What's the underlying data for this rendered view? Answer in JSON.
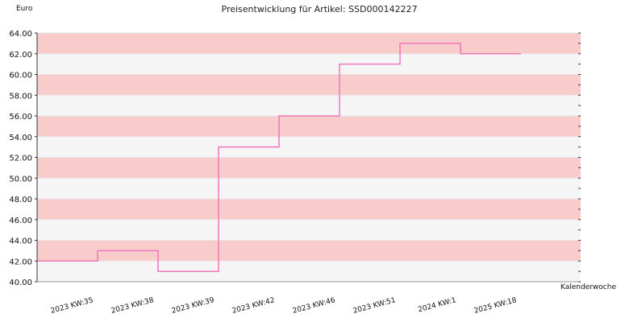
{
  "chart_data": {
    "type": "line",
    "step": true,
    "title": "Preisentwicklung für Artikel: SSD000142227",
    "ylabel": "Euro",
    "xlabel": "Kalenderwoche",
    "categories": [
      "2023 KW:35",
      "2023 KW:38",
      "2023 KW:39",
      "2023 KW:42",
      "2023 KW:46",
      "2023 KW:51",
      "2024 KW:1",
      "2025 KW:18"
    ],
    "values": [
      42.0,
      43.0,
      41.0,
      53.0,
      56.0,
      61.0,
      63.0,
      62.0
    ],
    "ylim": [
      40,
      64
    ],
    "yticks": [
      "40.00",
      "42.00",
      "44.00",
      "46.00",
      "48.00",
      "50.00",
      "52.00",
      "54.00",
      "56.00",
      "58.00",
      "60.00",
      "62.00",
      "64.00"
    ],
    "colors": {
      "line": "#ee77bb",
      "band_a": "#f9cccc",
      "band_b": "#f5f5f5",
      "grid": "#e6e6e6",
      "axis": "#333333"
    }
  }
}
